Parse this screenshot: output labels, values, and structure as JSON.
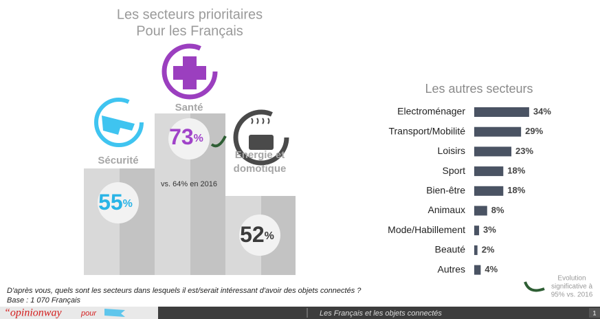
{
  "podium": {
    "title": [
      "Les secteurs prioritaires",
      "Pour les Français"
    ],
    "items": [
      {
        "label": [
          "Sécurité"
        ],
        "value": 55,
        "unit": "%",
        "color": "#2ab4e6"
      },
      {
        "label": [
          "Santé"
        ],
        "value": 73,
        "unit": "%",
        "color": "#a043c9",
        "note": "vs. 64% en 2016"
      },
      {
        "label": [
          "Energie et",
          "domotique"
        ],
        "value": 52,
        "unit": "%",
        "color": "#3b3b3b"
      }
    ]
  },
  "chart_data": {
    "type": "bar",
    "orientation": "horizontal",
    "title": "Les autres secteurs",
    "categories": [
      "Electroménager",
      "Transport/Mobilité",
      "Loisirs",
      "Sport",
      "Bien-être",
      "Animaux",
      "Mode/Habillement",
      "Beauté",
      "Autres"
    ],
    "values": [
      34,
      29,
      23,
      18,
      18,
      8,
      3,
      2,
      4
    ],
    "value_labels": [
      "34%",
      "29%",
      "23%",
      "18%",
      "18%",
      "8%",
      "3%",
      "2%",
      "4%"
    ],
    "color": "#4a5363"
  },
  "legend": {
    "text": [
      "Evolution",
      "significative à",
      "95% vs. 2016"
    ]
  },
  "footer": {
    "question": "D'après vous, quels sont les secteurs dans lesquels il est/serait intéressant d'avoir des objets connectés ?",
    "base": "Base : 1 070 Français",
    "brand": "“opinionway",
    "pour": "pour",
    "subject": "Les Français et les objets connectés",
    "page": "1"
  }
}
